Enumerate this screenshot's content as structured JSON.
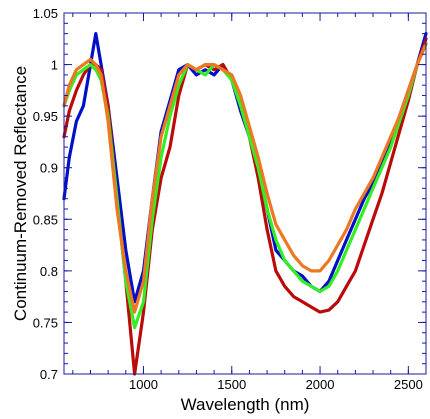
{
  "chart_data": {
    "type": "line",
    "title": "",
    "xlabel": "Wavelength (nm)",
    "ylabel": "Continuum-Removed Reflectance",
    "xlim": [
      550,
      2600
    ],
    "ylim": [
      0.7,
      1.05
    ],
    "x_ticks": [
      1000,
      1500,
      2000,
      2500
    ],
    "x_tick_labels": [
      "1000",
      "1500",
      "2000",
      "2500"
    ],
    "y_ticks": [
      0.7,
      0.75,
      0.8,
      0.85,
      0.9,
      0.95,
      1,
      1.05
    ],
    "y_tick_labels": [
      "0.7",
      "0.75",
      "0.8",
      "0.85",
      "0.9",
      "0.95",
      "1",
      "1.05"
    ],
    "grid": false,
    "legend": "none",
    "series": [
      {
        "color": "#0010c8",
        "points": [
          [
            550,
            0.87
          ],
          [
            580,
            0.91
          ],
          [
            620,
            0.945
          ],
          [
            660,
            0.96
          ],
          [
            700,
            1.0
          ],
          [
            730,
            1.03
          ],
          [
            760,
            1.0
          ],
          [
            800,
            0.96
          ],
          [
            850,
            0.89
          ],
          [
            900,
            0.82
          ],
          [
            950,
            0.77
          ],
          [
            1000,
            0.8
          ],
          [
            1050,
            0.87
          ],
          [
            1100,
            0.935
          ],
          [
            1150,
            0.965
          ],
          [
            1200,
            0.995
          ],
          [
            1250,
            1.0
          ],
          [
            1300,
            0.99
          ],
          [
            1350,
            0.995
          ],
          [
            1400,
            0.99
          ],
          [
            1450,
            1.0
          ],
          [
            1500,
            0.985
          ],
          [
            1550,
            0.955
          ],
          [
            1600,
            0.93
          ],
          [
            1650,
            0.9
          ],
          [
            1700,
            0.86
          ],
          [
            1750,
            0.82
          ],
          [
            1800,
            0.81
          ],
          [
            1850,
            0.8
          ],
          [
            1900,
            0.795
          ],
          [
            1950,
            0.785
          ],
          [
            2000,
            0.78
          ],
          [
            2050,
            0.79
          ],
          [
            2100,
            0.81
          ],
          [
            2150,
            0.83
          ],
          [
            2200,
            0.85
          ],
          [
            2250,
            0.87
          ],
          [
            2300,
            0.885
          ],
          [
            2350,
            0.905
          ],
          [
            2400,
            0.925
          ],
          [
            2450,
            0.95
          ],
          [
            2500,
            0.975
          ],
          [
            2550,
            1.0
          ],
          [
            2600,
            1.03
          ]
        ]
      },
      {
        "color": "#bb0a0a",
        "points": [
          [
            550,
            0.93
          ],
          [
            580,
            0.955
          ],
          [
            620,
            0.975
          ],
          [
            660,
            0.99
          ],
          [
            700,
            1.0
          ],
          [
            730,
            1.0
          ],
          [
            760,
            0.995
          ],
          [
            800,
            0.96
          ],
          [
            850,
            0.87
          ],
          [
            900,
            0.79
          ],
          [
            950,
            0.7
          ],
          [
            1000,
            0.76
          ],
          [
            1050,
            0.84
          ],
          [
            1100,
            0.89
          ],
          [
            1150,
            0.92
          ],
          [
            1200,
            0.97
          ],
          [
            1250,
            1.0
          ],
          [
            1300,
            0.995
          ],
          [
            1350,
            1.0
          ],
          [
            1400,
            0.995
          ],
          [
            1450,
            1.0
          ],
          [
            1500,
            0.985
          ],
          [
            1550,
            0.96
          ],
          [
            1600,
            0.93
          ],
          [
            1650,
            0.89
          ],
          [
            1700,
            0.84
          ],
          [
            1750,
            0.8
          ],
          [
            1800,
            0.785
          ],
          [
            1850,
            0.775
          ],
          [
            1900,
            0.77
          ],
          [
            1950,
            0.765
          ],
          [
            2000,
            0.76
          ],
          [
            2050,
            0.762
          ],
          [
            2100,
            0.77
          ],
          [
            2150,
            0.785
          ],
          [
            2200,
            0.8
          ],
          [
            2250,
            0.825
          ],
          [
            2300,
            0.85
          ],
          [
            2350,
            0.875
          ],
          [
            2400,
            0.905
          ],
          [
            2450,
            0.935
          ],
          [
            2500,
            0.965
          ],
          [
            2550,
            1.0
          ],
          [
            2600,
            1.025
          ]
        ]
      },
      {
        "color": "#33ee22",
        "points": [
          [
            550,
            0.96
          ],
          [
            580,
            0.975
          ],
          [
            620,
            0.99
          ],
          [
            660,
            0.995
          ],
          [
            700,
            1.0
          ],
          [
            730,
            0.995
          ],
          [
            760,
            0.985
          ],
          [
            800,
            0.95
          ],
          [
            850,
            0.87
          ],
          [
            900,
            0.79
          ],
          [
            950,
            0.745
          ],
          [
            1000,
            0.77
          ],
          [
            1050,
            0.85
          ],
          [
            1100,
            0.91
          ],
          [
            1150,
            0.95
          ],
          [
            1200,
            0.98
          ],
          [
            1250,
            1.0
          ],
          [
            1300,
            0.995
          ],
          [
            1350,
            0.99
          ],
          [
            1400,
            1.0
          ],
          [
            1450,
            0.995
          ],
          [
            1500,
            0.985
          ],
          [
            1550,
            0.96
          ],
          [
            1600,
            0.93
          ],
          [
            1650,
            0.9
          ],
          [
            1700,
            0.86
          ],
          [
            1750,
            0.83
          ],
          [
            1800,
            0.81
          ],
          [
            1850,
            0.8
          ],
          [
            1900,
            0.79
          ],
          [
            1950,
            0.785
          ],
          [
            2000,
            0.78
          ],
          [
            2050,
            0.785
          ],
          [
            2100,
            0.8
          ],
          [
            2150,
            0.82
          ],
          [
            2200,
            0.84
          ],
          [
            2250,
            0.86
          ],
          [
            2300,
            0.88
          ],
          [
            2350,
            0.9
          ],
          [
            2400,
            0.92
          ],
          [
            2450,
            0.945
          ],
          [
            2500,
            0.97
          ],
          [
            2550,
            1.0
          ],
          [
            2600,
            1.02
          ]
        ]
      },
      {
        "color": "#ee7722",
        "points": [
          [
            550,
            0.96
          ],
          [
            580,
            0.98
          ],
          [
            620,
            0.995
          ],
          [
            660,
            1.0
          ],
          [
            700,
            1.005
          ],
          [
            730,
            1.0
          ],
          [
            760,
            0.99
          ],
          [
            800,
            0.945
          ],
          [
            850,
            0.86
          ],
          [
            900,
            0.8
          ],
          [
            950,
            0.76
          ],
          [
            1000,
            0.79
          ],
          [
            1050,
            0.87
          ],
          [
            1100,
            0.93
          ],
          [
            1150,
            0.96
          ],
          [
            1200,
            0.99
          ],
          [
            1250,
            1.0
          ],
          [
            1300,
            0.995
          ],
          [
            1350,
            1.0
          ],
          [
            1400,
            1.0
          ],
          [
            1450,
            0.995
          ],
          [
            1500,
            0.99
          ],
          [
            1550,
            0.97
          ],
          [
            1600,
            0.94
          ],
          [
            1650,
            0.91
          ],
          [
            1700,
            0.875
          ],
          [
            1750,
            0.845
          ],
          [
            1800,
            0.83
          ],
          [
            1850,
            0.815
          ],
          [
            1900,
            0.805
          ],
          [
            1950,
            0.8
          ],
          [
            2000,
            0.8
          ],
          [
            2050,
            0.81
          ],
          [
            2100,
            0.825
          ],
          [
            2150,
            0.84
          ],
          [
            2200,
            0.86
          ],
          [
            2250,
            0.875
          ],
          [
            2300,
            0.89
          ],
          [
            2350,
            0.91
          ],
          [
            2400,
            0.93
          ],
          [
            2450,
            0.95
          ],
          [
            2500,
            0.975
          ],
          [
            2550,
            1.0
          ],
          [
            2600,
            1.02
          ]
        ]
      }
    ]
  }
}
